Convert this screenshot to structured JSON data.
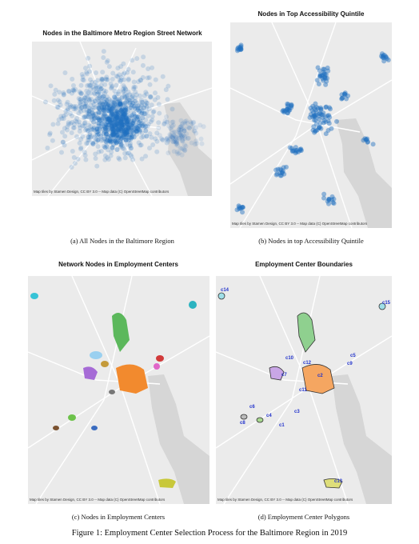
{
  "panels": [
    {
      "title": "Nodes in the Baltimore Metro Region Street Network",
      "caption": "(a) All Nodes in the Baltimore Region",
      "attribution": "Map tiles by Stamen Design, CC BY 3.0 -- Map data (C) OpenStreetMap contributors"
    },
    {
      "title": "Nodes in Top Accessibility Quintile",
      "caption": "(b) Nodes in top Accessibility Quintile",
      "attribution": "Map tiles by Stamen Design, CC BY 3.0 -- Map data (C) OpenStreetMap contributors"
    },
    {
      "title": "Network Nodes in Employment Centers",
      "caption": "(c) Nodes in Employment Centers",
      "attribution": "Map tiles by Stamen Design, CC BY 3.0 -- Map data (C) OpenStreetMap contributors"
    },
    {
      "title": "Employment Center Boundaries",
      "caption": "(d) Employment Center Polygons",
      "attribution": "Map tiles by Stamen Design, CC BY 3.0 -- Map data (C) OpenStreetMap contributors"
    }
  ],
  "cluster_labels": [
    "c14",
    "c15",
    "c10",
    "c12",
    "c2",
    "c5",
    "c9",
    "c7",
    "c11",
    "c6",
    "c4",
    "c8",
    "c3",
    "c1",
    "c13"
  ],
  "figure_caption": "Figure 1: Employment Center Selection Process for the Baltimore Region in 2019"
}
